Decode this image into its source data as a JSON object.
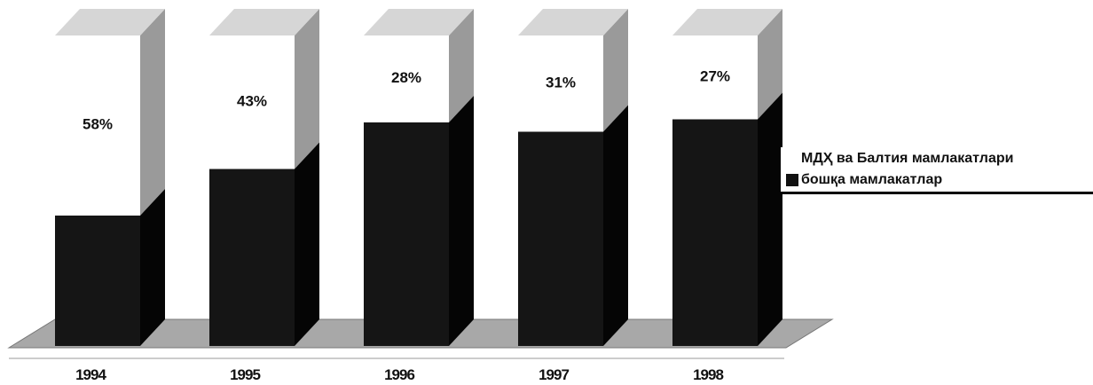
{
  "chart_data": {
    "type": "bar",
    "stacked": true,
    "three_d": true,
    "categories": [
      "1994",
      "1995",
      "1996",
      "1997",
      "1998"
    ],
    "series": [
      {
        "name": "бошқа мамлакатлар",
        "values": [
          42,
          57,
          72,
          69,
          73
        ],
        "color": "#111111"
      },
      {
        "name": "МДҲ ва Балтия мамлакатлари",
        "values": [
          58,
          43,
          28,
          31,
          27
        ],
        "color": "#ffffff"
      }
    ],
    "data_labels": [
      "58%",
      "43%",
      "28%",
      "31%",
      "27%"
    ],
    "ylim": [
      0,
      100
    ],
    "legend_position": "right",
    "grid": false
  }
}
